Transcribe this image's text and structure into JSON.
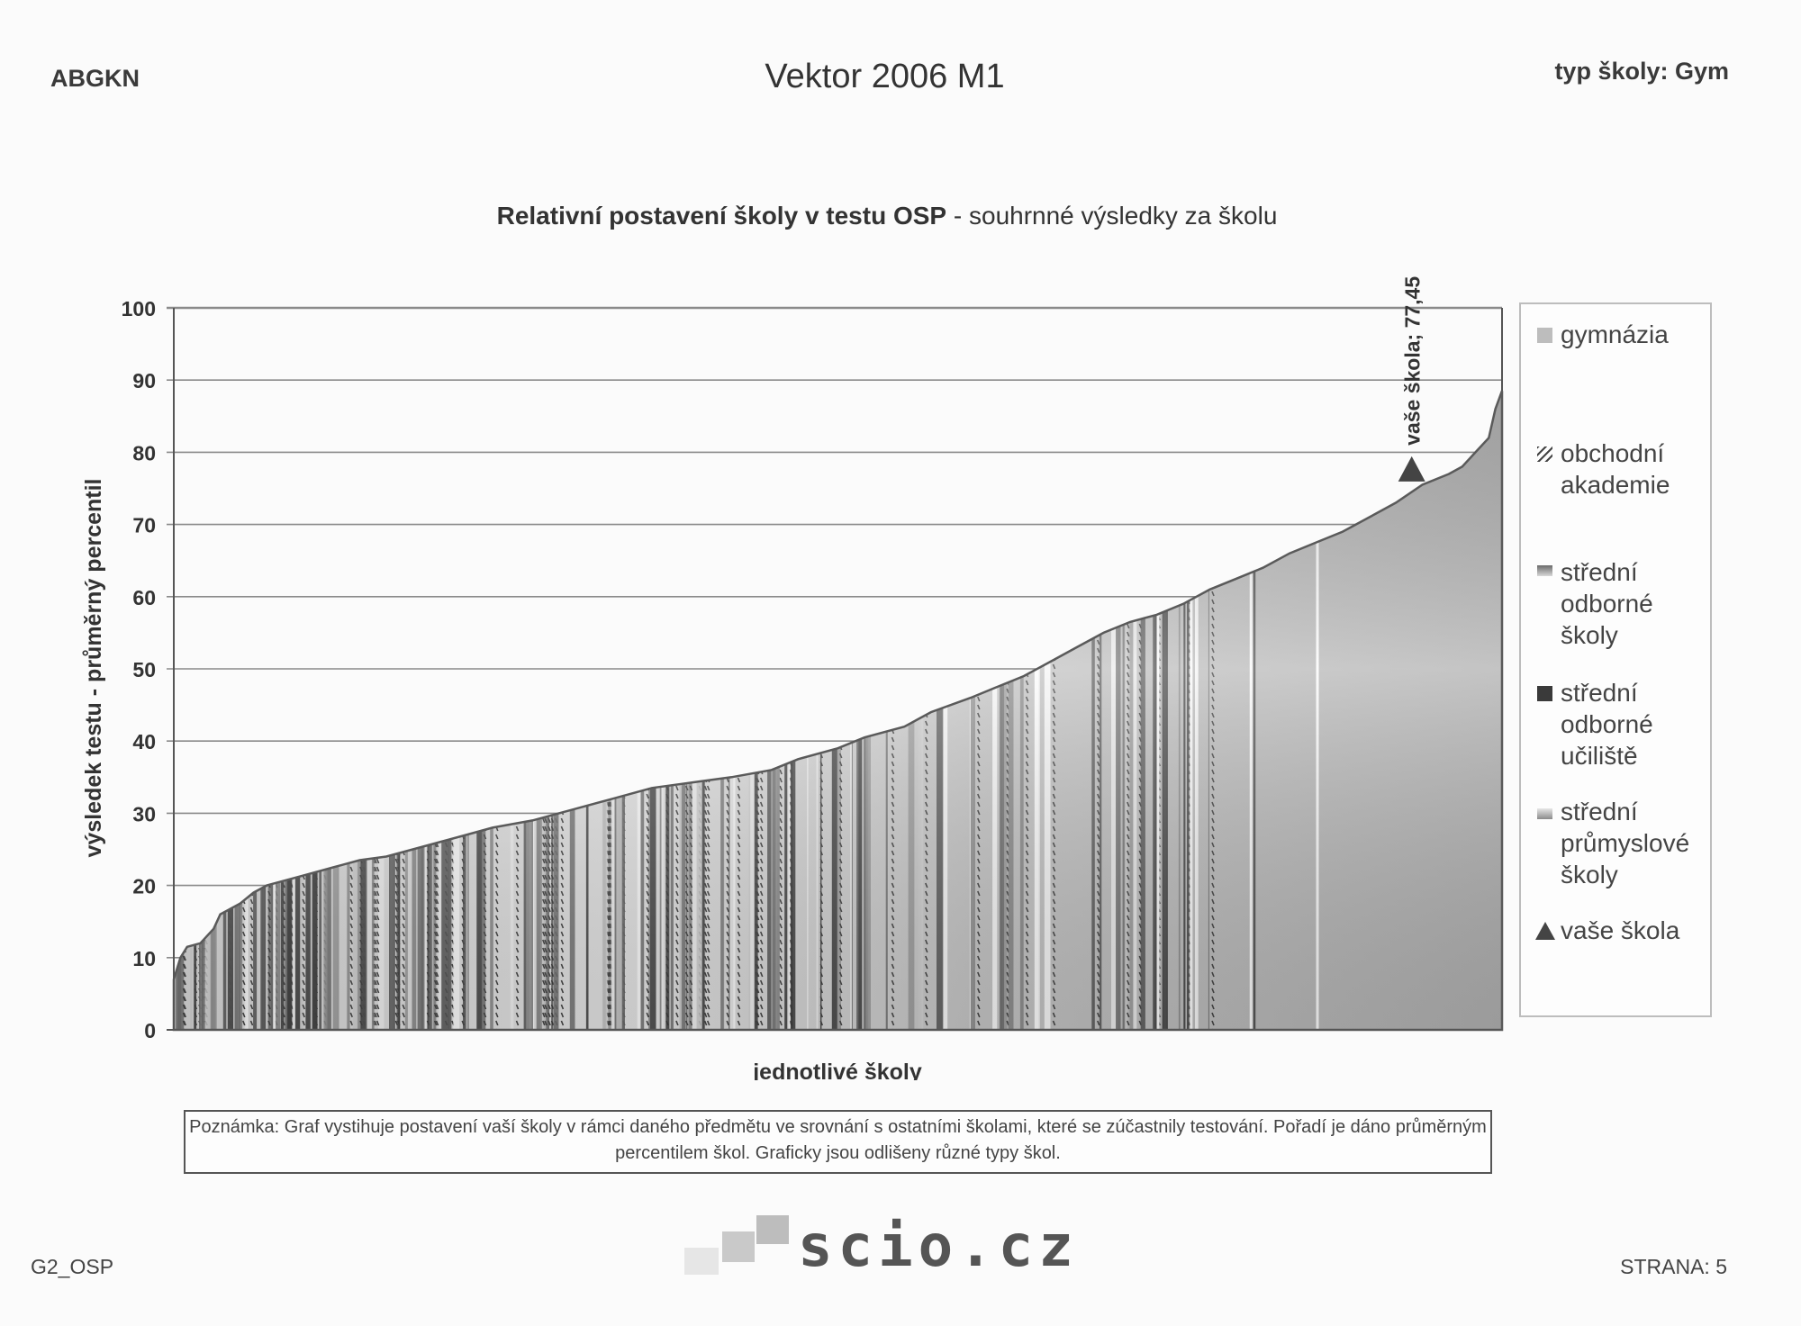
{
  "header": {
    "left": "ABGKN",
    "center": "Vektor 2006 M1",
    "right": "typ školy: Gym"
  },
  "chart": {
    "title_bold": "Relativní postavení školy v testu OSP",
    "title_rest": " - souhrnné výsledky za školu"
  },
  "chart_data": {
    "type": "area",
    "title": "Relativní postavení školy v testu OSP - souhrnné výsledky za školu",
    "xlabel": "jednotlivé školy",
    "ylabel": "výsledek testu - průměrný percentil",
    "ylim": [
      0,
      100
    ],
    "yticks": [
      0,
      10,
      20,
      30,
      40,
      50,
      60,
      70,
      80,
      90,
      100
    ],
    "grid": true,
    "legend_position": "right",
    "series_legend": [
      "gymnázia",
      "obchodní akademie",
      "střední odborné školy",
      "střední odborné učiliště",
      "střední průmyslové školy",
      "vaše škola"
    ],
    "curve_points": [
      [
        0.0,
        7
      ],
      [
        0.005,
        10
      ],
      [
        0.01,
        11.5
      ],
      [
        0.02,
        12
      ],
      [
        0.03,
        14
      ],
      [
        0.035,
        16
      ],
      [
        0.05,
        17.5
      ],
      [
        0.06,
        19
      ],
      [
        0.07,
        20
      ],
      [
        0.08,
        20.5
      ],
      [
        0.1,
        21.5
      ],
      [
        0.12,
        22.5
      ],
      [
        0.14,
        23.5
      ],
      [
        0.16,
        24
      ],
      [
        0.18,
        25
      ],
      [
        0.2,
        26
      ],
      [
        0.22,
        27
      ],
      [
        0.24,
        28
      ],
      [
        0.27,
        29
      ],
      [
        0.3,
        30.5
      ],
      [
        0.33,
        32
      ],
      [
        0.36,
        33.5
      ],
      [
        0.4,
        34.5
      ],
      [
        0.42,
        35
      ],
      [
        0.45,
        36
      ],
      [
        0.47,
        37.5
      ],
      [
        0.5,
        39
      ],
      [
        0.52,
        40.5
      ],
      [
        0.55,
        42
      ],
      [
        0.57,
        44
      ],
      [
        0.6,
        46
      ],
      [
        0.62,
        47.5
      ],
      [
        0.64,
        49
      ],
      [
        0.66,
        51
      ],
      [
        0.68,
        53
      ],
      [
        0.7,
        55
      ],
      [
        0.72,
        56.5
      ],
      [
        0.74,
        57.5
      ],
      [
        0.76,
        59
      ],
      [
        0.78,
        61
      ],
      [
        0.8,
        62.5
      ],
      [
        0.82,
        64
      ],
      [
        0.84,
        66
      ],
      [
        0.86,
        67.5
      ],
      [
        0.88,
        69
      ],
      [
        0.9,
        71
      ],
      [
        0.92,
        73
      ],
      [
        0.94,
        75.5
      ],
      [
        0.96,
        77
      ],
      [
        0.97,
        78
      ],
      [
        0.98,
        80
      ],
      [
        0.99,
        82
      ],
      [
        0.995,
        86
      ],
      [
        1.0,
        88.5
      ]
    ],
    "your_school": {
      "label": "vaše škola; 77,45",
      "value": 77.45,
      "rank_fraction": 0.932
    }
  },
  "legend": {
    "items": [
      {
        "label": "gymnázia",
        "swatch": "solid-light"
      },
      {
        "label": "obchodní\nakademie",
        "swatch": "hatched"
      },
      {
        "label": "střední\nodborné\nškoly",
        "swatch": "gradient"
      },
      {
        "label": "střední\nodborné\nučiliště",
        "swatch": "solid-dark"
      },
      {
        "label": "střední\nprůmyslové\nškoly",
        "swatch": "gradient-light"
      },
      {
        "label": "vaše škola",
        "swatch": "triangle"
      }
    ]
  },
  "note": {
    "text": "Poznámka: Graf vystihuje postavení vaší školy v rámci daného předmětu ve srovnání s ostatními školami, které se zúčastnily testování. Pořadí je dáno průměrným percentilem škol. Graficky jsou odlišeny různé typy škol."
  },
  "footer": {
    "left": "G2_OSP",
    "logo": "scio.cz",
    "right": "STRANA: 5"
  },
  "colors": {
    "area": "#b9b9b9",
    "dark": "#3c3c3c",
    "grid": "#8a8a8a",
    "marker": "#444444"
  }
}
